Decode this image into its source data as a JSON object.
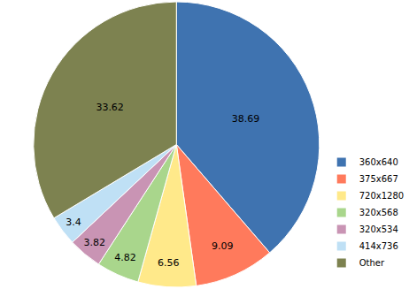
{
  "chart_data": {
    "type": "pie",
    "categories": [
      "360x640",
      "375x667",
      "720x1280",
      "320x568",
      "320x534",
      "414x736",
      "Other"
    ],
    "values": [
      38.69,
      9.09,
      6.56,
      4.82,
      3.82,
      3.4,
      33.62
    ],
    "colors": [
      "#3f73b0",
      "#ff7a5c",
      "#ffe98a",
      "#a9d68c",
      "#c994b4",
      "#bfe0f5",
      "#7d8250"
    ],
    "data_labels": true,
    "legend": "lower right"
  }
}
